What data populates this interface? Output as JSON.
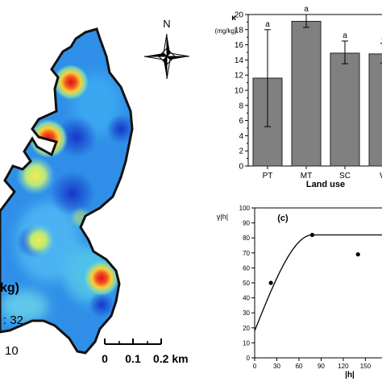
{
  "map": {
    "compass_label": "N",
    "legend_title": "kg)",
    "legend_max": ": 32",
    "legend_min": "10",
    "scalebar": {
      "ticks": [
        "0",
        "0.1",
        "0.2 km"
      ]
    },
    "colors": {
      "outline": "#111111",
      "base": "#2f8fe8",
      "hot": "#e8261c",
      "warm": "#f6e43a"
    }
  },
  "chart_data": [
    {
      "type": "bar",
      "ylabel_symbol": "κ",
      "ylabel_unit": "(mg/kg)",
      "xlabel": "Land use",
      "categories": [
        "PT",
        "MT",
        "SC",
        "W"
      ],
      "values": [
        11.6,
        19.1,
        14.9,
        14.8
      ],
      "error_low": [
        5.2,
        18.3,
        13.5,
        13.6
      ],
      "error_high": [
        18.0,
        20.0,
        16.5,
        16.2
      ],
      "letters": [
        "a",
        "a",
        "a",
        "a"
      ],
      "ylim": [
        0,
        20
      ],
      "yticks": [
        "0",
        "2",
        "4",
        "6",
        "8",
        "10",
        "12",
        "14",
        "16",
        "18",
        "20"
      ],
      "bar_color": "#808080"
    },
    {
      "type": "scatter",
      "panel_label": "(c)",
      "ylabel": "γ|h|",
      "xlabel": "|h|",
      "xlim": [
        0,
        190
      ],
      "ylim": [
        0,
        100
      ],
      "xticks": [
        "0",
        "30",
        "60",
        "90",
        "120",
        "150"
      ],
      "yticks": [
        "0",
        "10",
        "20",
        "30",
        "40",
        "50",
        "60",
        "70",
        "80",
        "90",
        "100"
      ],
      "points": [
        {
          "x": 22,
          "y": 50
        },
        {
          "x": 78,
          "y": 82
        },
        {
          "x": 140,
          "y": 69
        }
      ],
      "model": {
        "nugget": 18,
        "sill": 82,
        "range": 78
      }
    }
  ]
}
